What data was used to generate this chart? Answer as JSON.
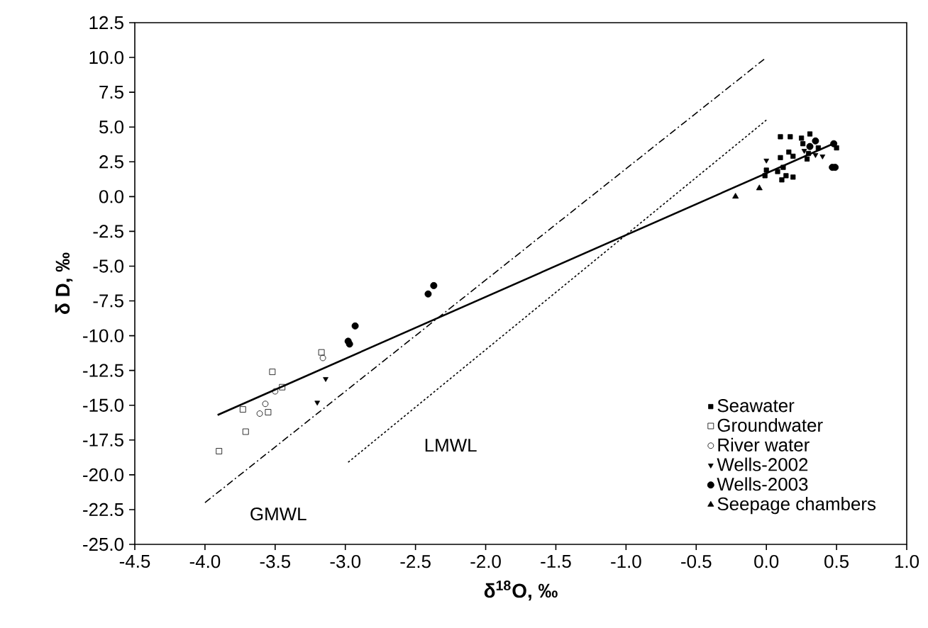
{
  "chart_data": {
    "type": "scatter",
    "xlabel": "δ$^{18}$O, ‰",
    "ylabel": "δ D, ‰",
    "xlim": [
      -4.5,
      1.0
    ],
    "ylim": [
      -25,
      12.5
    ],
    "xticks": [
      {
        "value": -4.5,
        "label": "-4.5"
      },
      {
        "value": -4.0,
        "label": "-4.0"
      },
      {
        "value": -3.5,
        "label": "-3.5"
      },
      {
        "value": -3.0,
        "label": "-3.0"
      },
      {
        "value": -2.5,
        "label": "-2.5"
      },
      {
        "value": -2.0,
        "label": "-2.0"
      },
      {
        "value": -1.5,
        "label": "-1.5"
      },
      {
        "value": -1.0,
        "label": "-1.0"
      },
      {
        "value": -0.5,
        "label": "-0.5"
      },
      {
        "value": 0.0,
        "label": "0.0"
      },
      {
        "value": 0.5,
        "label": "0.5"
      },
      {
        "value": 1.0,
        "label": "1.0"
      }
    ],
    "yticks": [
      {
        "value": -25,
        "label": "-25.0"
      },
      {
        "value": -22.5,
        "label": "-22.5"
      },
      {
        "value": -20,
        "label": "-20.0"
      },
      {
        "value": -17.5,
        "label": "-17.5"
      },
      {
        "value": -15,
        "label": "-15.0"
      },
      {
        "value": -12.5,
        "label": "-12.5"
      },
      {
        "value": -10,
        "label": "-10.0"
      },
      {
        "value": -7.5,
        "label": "-7.5"
      },
      {
        "value": -5,
        "label": "-5.0"
      },
      {
        "value": -2.5,
        "label": "-2.5"
      },
      {
        "value": 0,
        "label": "0.0"
      },
      {
        "value": 2.5,
        "label": "2.5"
      },
      {
        "value": 5,
        "label": "5.0"
      },
      {
        "value": 7.5,
        "label": "7.5"
      },
      {
        "value": 10,
        "label": "10.0"
      },
      {
        "value": 12.5,
        "label": "12.5"
      }
    ],
    "legend": "bottom right",
    "series": [
      {
        "name": "Seawater",
        "color": "#000000",
        "marker": "square",
        "x": [
          0.1,
          0.17,
          0.25,
          0.31,
          0.1,
          0.16,
          0.19,
          -0.01,
          0.0,
          0.08,
          0.12,
          0.11,
          0.14,
          0.19,
          0.29,
          0.3,
          0.37,
          0.5,
          0.26
        ],
        "values": [
          4.3,
          4.3,
          4.2,
          4.5,
          2.8,
          3.2,
          2.9,
          1.5,
          1.9,
          1.8,
          2.1,
          1.2,
          1.5,
          1.4,
          2.7,
          3.1,
          3.5,
          3.5,
          3.8
        ]
      },
      {
        "name": "Groundwater",
        "color": "#000000",
        "marker": "square-open",
        "x": [
          -3.9,
          -3.71,
          -3.73,
          -3.55,
          -3.52,
          -3.45,
          -3.17
        ],
        "values": [
          -18.3,
          -16.9,
          -15.3,
          -15.5,
          -12.6,
          -13.7,
          -11.2
        ]
      },
      {
        "name": "River water",
        "color": "#000000",
        "marker": "circle-open",
        "x": [
          -3.61,
          -3.57,
          -3.5,
          -3.16
        ],
        "values": [
          -15.6,
          -14.9,
          -14.0,
          -11.6
        ]
      },
      {
        "name": "Wells-2002",
        "color": "#000000",
        "marker": "triangle-down",
        "x": [
          -3.2,
          -3.14,
          0.0,
          0.35,
          0.4,
          0.27
        ],
        "values": [
          -14.8,
          -13.1,
          2.6,
          3.0,
          2.9,
          3.3
        ]
      },
      {
        "name": "Wells-2003",
        "color": "#000000",
        "marker": "circle",
        "x": [
          -2.97,
          -2.98,
          -2.93,
          -2.41,
          -2.37,
          0.35,
          0.48,
          0.47,
          0.49,
          0.31
        ],
        "values": [
          -10.6,
          -10.4,
          -9.3,
          -7.0,
          -6.4,
          4.0,
          3.8,
          2.1,
          2.1,
          3.6
        ]
      },
      {
        "name": "Seepage chambers",
        "color": "#000000",
        "marker": "triangle",
        "x": [
          -0.22,
          -0.05
        ],
        "values": [
          0.0,
          0.6
        ]
      },
      {
        "type": "line",
        "color": "#000000",
        "line_style": "solid",
        "x": [
          -3.91,
          0.5
        ],
        "values": [
          -15.7,
          3.9
        ]
      },
      {
        "type": "line",
        "color": "#000000",
        "line_style": "dashed",
        "x": [
          -4.0,
          0.0
        ],
        "values": [
          -22.0,
          10.0
        ]
      },
      {
        "type": "line",
        "color": "#000000",
        "line_style": "dotted",
        "x": [
          -2.98,
          0.0
        ],
        "values": [
          -19.1,
          5.5
        ]
      }
    ],
    "annotations": [
      "GMWL",
      "LMWL"
    ]
  }
}
